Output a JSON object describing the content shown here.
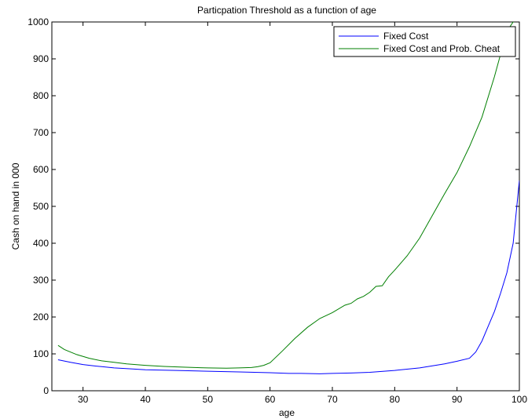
{
  "chart_data": {
    "type": "line",
    "title": "Particpation Threshold as a function of age",
    "xlabel": "age",
    "ylabel": "Cash on hand in 000",
    "xlim": [
      25,
      100
    ],
    "ylim": [
      0,
      1000
    ],
    "x_ticks": [
      30,
      40,
      50,
      60,
      70,
      80,
      90,
      100
    ],
    "y_ticks": [
      0,
      100,
      200,
      300,
      400,
      500,
      600,
      700,
      800,
      900,
      1000
    ],
    "grid": false,
    "legend_position": "top-right",
    "series": [
      {
        "name": "Fixed Cost",
        "color": "#0000ff",
        "x": [
          26,
          28,
          30,
          32,
          35,
          38,
          40,
          45,
          50,
          55,
          60,
          63,
          65,
          68,
          70,
          73,
          76,
          80,
          84,
          88,
          90,
          92,
          93,
          94,
          95,
          96,
          97,
          98,
          99,
          100
        ],
        "y": [
          84,
          77,
          71,
          67,
          62,
          59,
          57,
          55,
          53,
          51,
          49,
          47,
          47,
          46,
          47,
          48,
          50,
          55,
          62,
          73,
          80,
          88,
          105,
          135,
          175,
          215,
          265,
          320,
          400,
          570
        ]
      },
      {
        "name": "Fixed Cost and Prob. Cheat",
        "color": "#007f00",
        "x": [
          26,
          27,
          29,
          31,
          33,
          35,
          37,
          40,
          43,
          46,
          50,
          53,
          55,
          57,
          58,
          59,
          60,
          62,
          64,
          66,
          68,
          70,
          72,
          73,
          74,
          75,
          76,
          77,
          78,
          79,
          80,
          82,
          84,
          86,
          88,
          90,
          92,
          94,
          96,
          98,
          99,
          100
        ],
        "y": [
          123,
          112,
          98,
          88,
          81,
          77,
          73,
          69,
          66,
          64,
          62,
          61,
          62,
          63,
          65,
          69,
          76,
          108,
          142,
          172,
          196,
          212,
          232,
          237,
          249,
          256,
          267,
          283,
          285,
          309,
          327,
          366,
          414,
          474,
          534,
          592,
          662,
          742,
          852,
          975,
          1000,
          1005
        ]
      }
    ]
  }
}
